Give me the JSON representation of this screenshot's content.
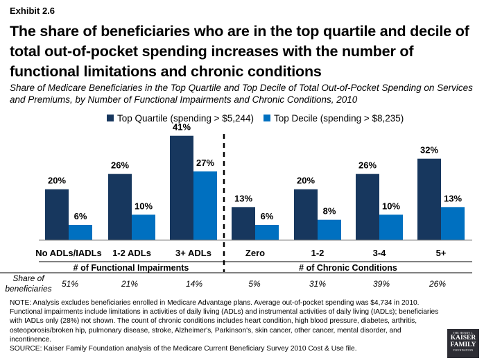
{
  "header": {
    "exhibit": "Exhibit 2.6",
    "title": "The share of beneficiaries who are in the top quartile and decile of total out-of-pocket spending increases with the number of functional limitations and chronic conditions",
    "subtitle": "Share of Medicare Beneficiaries in the Top Quartile and Top Decile of Total Out-of-Pocket Spending on Services and Premiums, by Number of Functional Impairments and Chronic Conditions, 2010"
  },
  "chart_data": {
    "type": "bar",
    "categories": [
      "No ADLs/IADLs",
      "1-2 ADLs",
      "3+ ADLs",
      "Zero",
      "1-2",
      "3-4",
      "5+"
    ],
    "series": [
      {
        "name": "Top Quartile (spending > $5,244)",
        "values": [
          20,
          26,
          41,
          13,
          20,
          26,
          32
        ],
        "labels": [
          "20%",
          "26%",
          "41%",
          "13%",
          "20%",
          "26%",
          "32%"
        ],
        "color": "#17375e"
      },
      {
        "name": "Top Decile (spending > $8,235)",
        "values": [
          6,
          10,
          27,
          6,
          8,
          10,
          13
        ],
        "labels": [
          "6%",
          "10%",
          "27%",
          "6%",
          "8%",
          "10%",
          "13%"
        ],
        "color": "#0070c0"
      }
    ],
    "groups": [
      {
        "label": "# of Functional Impairments",
        "categories": [
          "No ADLs/IADLs",
          "1-2 ADLs",
          "3+ ADLs"
        ]
      },
      {
        "label": "# of Chronic Conditions",
        "categories": [
          "Zero",
          "1-2",
          "3-4",
          "5+"
        ]
      }
    ],
    "ylim": [
      0,
      45
    ],
    "legend_position": "top",
    "grid": false
  },
  "share_row": {
    "label": "Share of beneficiaries",
    "values": [
      "51%",
      "21%",
      "14%",
      "5%",
      "31%",
      "39%",
      "26%"
    ]
  },
  "footnote": {
    "note": "NOTE: Analysis excludes beneficiaries enrolled in Medicare Advantage plans. Average out-of-pocket spending was $4,734 in 2010. Functional impairments include limitations in activities of daily living (ADLs) and instrumental activities of daily living (IADLs); beneficiaries with IADLs only (28%) not shown. The count of chronic conditions includes heart condition, high blood pressure, diabetes, arthritis, osteoporosis/broken hip, pulmonary disease, stroke, Alzheimer's, Parkinson's, skin cancer, other cancer, mental disorder, and incontinence.",
    "source": "SOURCE: Kaiser Family Foundation analysis of the Medicare Current Beneficiary Survey 2010 Cost & Use file."
  },
  "logo": {
    "line1": "THE HENRY J.",
    "line2a": "KAISER",
    "line2b": "FAMILY",
    "line3": "FOUNDATION"
  }
}
